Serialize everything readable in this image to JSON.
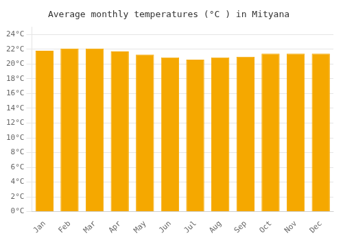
{
  "chart_data": {
    "type": "bar",
    "title": "Average monthly temperatures (°C ) in Mityana",
    "categories": [
      "Jan",
      "Feb",
      "Mar",
      "Apr",
      "May",
      "Jun",
      "Jul",
      "Aug",
      "Sep",
      "Oct",
      "Nov",
      "Dec"
    ],
    "values": [
      21.8,
      22.1,
      22.1,
      21.7,
      21.3,
      20.9,
      20.6,
      20.9,
      21.0,
      21.4,
      21.4,
      21.4
    ],
    "color": "#F5A800",
    "ylim": [
      0,
      25
    ],
    "yticks": [
      {
        "value": 0,
        "label": "0°C"
      },
      {
        "value": 2,
        "label": "2°C"
      },
      {
        "value": 4,
        "label": "4°C"
      },
      {
        "value": 6,
        "label": "6°C"
      },
      {
        "value": 8,
        "label": "8°C"
      },
      {
        "value": 10,
        "label": "10°C"
      },
      {
        "value": 12,
        "label": "12°C"
      },
      {
        "value": 14,
        "label": "14°C"
      },
      {
        "value": 16,
        "label": "16°C"
      },
      {
        "value": 18,
        "label": "18°C"
      },
      {
        "value": 20,
        "label": "20°C"
      },
      {
        "value": 22,
        "label": "22°C"
      },
      {
        "value": 24,
        "label": "24°C"
      }
    ],
    "grid": true
  }
}
